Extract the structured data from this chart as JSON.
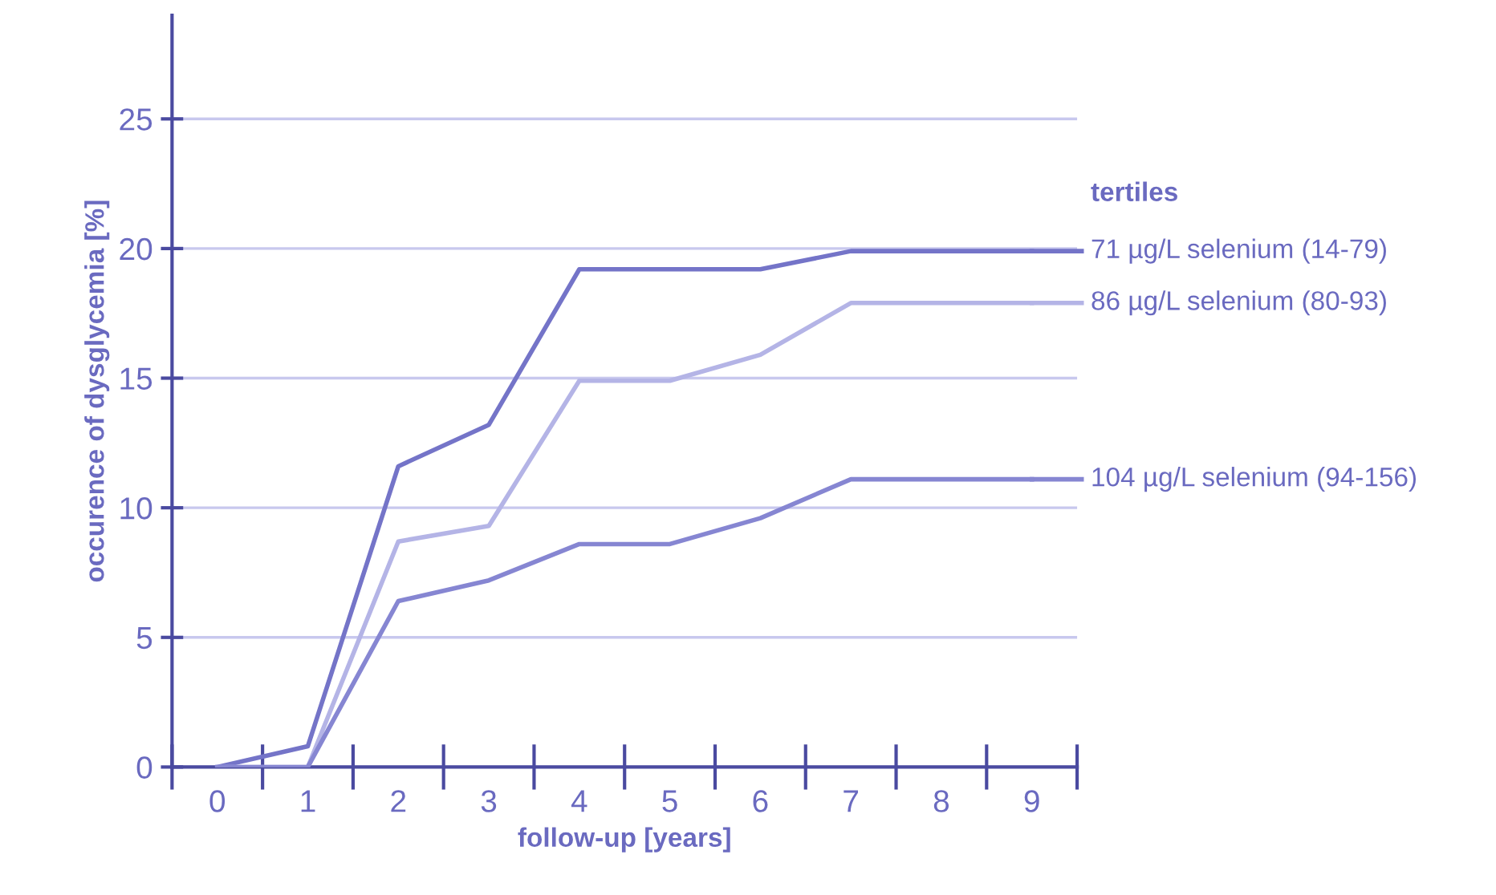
{
  "chart_data": {
    "type": "line",
    "xlabel": "follow-up [years]",
    "ylabel": "occurence of dysglycemia [%]",
    "legend_title": "tertiles",
    "categories": [
      "0",
      "1",
      "2",
      "3",
      "4",
      "5",
      "6",
      "7",
      "8",
      "9"
    ],
    "series": [
      {
        "name": "71 µg/L selenium (14-79)",
        "color": "#7474c8",
        "values": [
          0,
          0.8,
          11.6,
          13.2,
          19.2,
          19.2,
          19.2,
          19.9,
          19.9,
          19.9
        ]
      },
      {
        "name": "86 µg/L selenium (80-93)",
        "color": "#b4b4e6",
        "values": [
          0,
          0,
          8.7,
          9.3,
          14.9,
          14.9,
          15.9,
          17.9,
          17.9,
          17.9
        ]
      },
      {
        "name": "104 µg/L selenium (94-156)",
        "color": "#8686d2",
        "values": [
          0,
          0,
          6.4,
          7.2,
          8.6,
          8.6,
          9.6,
          11.1,
          11.1,
          11.1
        ]
      }
    ],
    "ylim": [
      0,
      29
    ],
    "yticks": [
      0,
      5,
      10,
      15,
      20,
      25
    ],
    "grid": "y",
    "legend": "right",
    "marker": "none",
    "line_style": "solid"
  }
}
